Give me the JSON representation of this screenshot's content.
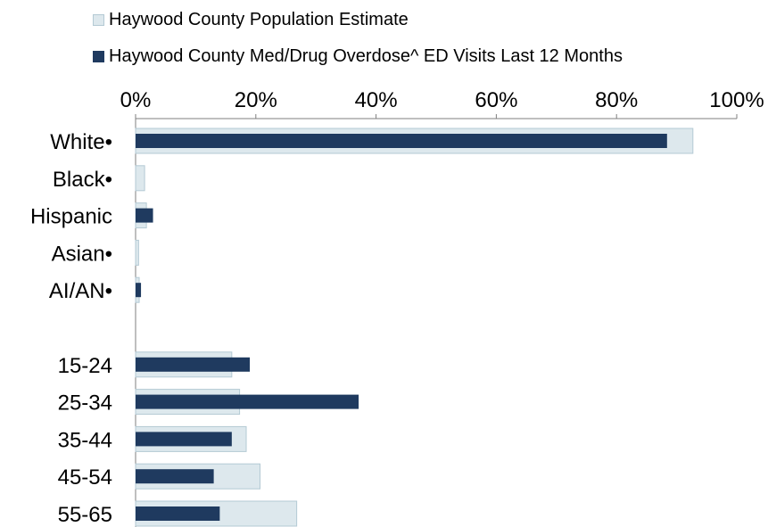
{
  "chart_data": {
    "type": "bar",
    "orientation": "horizontal",
    "title": "",
    "xlabel": "",
    "ylabel": "",
    "xlim": [
      0,
      100
    ],
    "x_ticks": [
      "0%",
      "20%",
      "40%",
      "60%",
      "80%",
      "100%"
    ],
    "x_tick_values": [
      0,
      20,
      40,
      60,
      80,
      100
    ],
    "legend_position": "top",
    "grid": false,
    "categories": [
      "White•",
      "Black•",
      "Hispanic",
      "Asian•",
      "AI/AN•",
      "",
      "15-24",
      "25-34",
      "35-44",
      "45-54",
      "55-65"
    ],
    "series": [
      {
        "name": "Haywood County Population Estimate",
        "color": "#dde8ed",
        "border": "#b4cad4",
        "values": [
          92.7,
          1.5,
          1.8,
          0.5,
          0.6,
          null,
          16.0,
          17.3,
          18.4,
          20.7,
          26.8
        ]
      },
      {
        "name": "Haywood County Med/Drug Overdose^ ED Visits Last 12 Months",
        "color": "#1f3a5f",
        "values": [
          88.4,
          0,
          2.9,
          0,
          0.9,
          null,
          19.0,
          37.1,
          16.0,
          13.0,
          14.0
        ]
      }
    ]
  }
}
